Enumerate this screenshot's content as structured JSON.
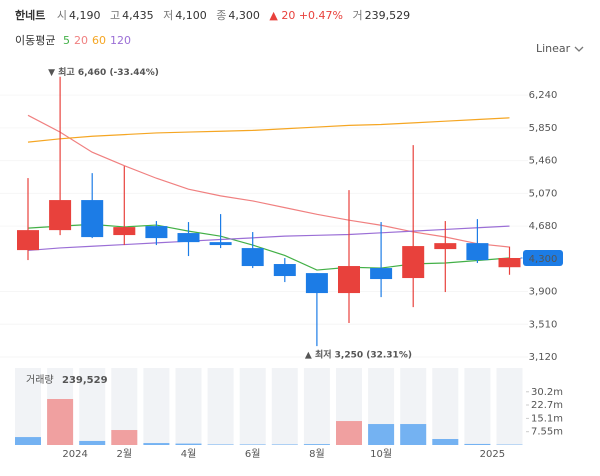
{
  "header": {
    "name": "한네트",
    "open_label": "시",
    "open": "4,190",
    "high_label": "고",
    "high": "4,435",
    "low_label": "저",
    "low": "4,100",
    "close_label": "종",
    "close": "4,300",
    "change": "▲ 20 +0.47%",
    "volume_label": "거",
    "volume": "239,529"
  },
  "ma_legend_label": "이동평균",
  "scale_button": "Linear",
  "chart_data": {
    "type": "candlestick",
    "categories": [
      null,
      "2024",
      null,
      "2월",
      null,
      "4월",
      null,
      "6월",
      null,
      "8월",
      null,
      "10월",
      null,
      null,
      "2025",
      null
    ],
    "open": [
      4394,
      4632,
      4990,
      4573,
      4680,
      4597,
      4489,
      4418,
      4228,
      4120,
      3882,
      4180,
      4061,
      4406,
      4477,
      4190
    ],
    "high": [
      5252,
      6460,
      5311,
      5394,
      4740,
      4728,
      4823,
      4609,
      4299,
      4120,
      5109,
      4728,
      5645,
      4740,
      4763,
      4435
    ],
    "low": [
      4275,
      4573,
      4537,
      4454,
      4454,
      4323,
      4418,
      4180,
      4013,
      3250,
      3525,
      3834,
      3715,
      3894,
      4240,
      4100
    ],
    "close": [
      4632,
      4990,
      4549,
      4668,
      4537,
      4489,
      4454,
      4204,
      4085,
      3882,
      4204,
      4049,
      4442,
      4477,
      4275,
      4300
    ],
    "up_color": "#e8413c",
    "down_color": "#1c7ce6",
    "series": [
      {
        "name": "5",
        "color": "#43b047",
        "values": [
          4656,
          4680,
          4700,
          4670,
          4692,
          4620,
          4560,
          4454,
          4330,
          4156,
          4190,
          4180,
          4230,
          4240,
          4270,
          4300
        ]
      },
      {
        "name": "20",
        "color": "#f08080",
        "values": [
          6000,
          5800,
          5560,
          5400,
          5250,
          5120,
          5040,
          4980,
          4900,
          4820,
          4750,
          4690,
          4610,
          4550,
          4470,
          4430
        ]
      },
      {
        "name": "60",
        "color": "#f5a623",
        "values": [
          5680,
          5720,
          5750,
          5770,
          5790,
          5800,
          5810,
          5820,
          5840,
          5860,
          5880,
          5890,
          5910,
          5930,
          5950,
          5970
        ]
      },
      {
        "name": "120",
        "color": "#9b6fd6",
        "values": [
          4390,
          4420,
          4440,
          4460,
          4480,
          4500,
          4520,
          4540,
          4560,
          4570,
          4580,
          4600,
          4620,
          4640,
          4660,
          4680
        ]
      }
    ],
    "ylim": [
      3025,
      6635
    ],
    "yticks": [
      {
        "value": 3120,
        "label": "3,120"
      },
      {
        "value": 3510,
        "label": "3,510"
      },
      {
        "value": 3900,
        "label": "3,900"
      },
      {
        "value": 4680,
        "label": "4,680"
      },
      {
        "value": 5070,
        "label": "5,070"
      },
      {
        "value": 5460,
        "label": "5,460"
      },
      {
        "value": 5850,
        "label": "5,850"
      },
      {
        "value": 6240,
        "label": "6,240"
      }
    ],
    "grid": true,
    "last_price_label": "4,300",
    "annotations": [
      {
        "text": "▼ 최고 6,460 (-33.44%)",
        "index": 1
      },
      {
        "text": "▲ 최저 3,250 (32.31%)",
        "index": 9
      }
    ],
    "volume": {
      "label": "거래량",
      "value_label": "239,529",
      "values": [
        4.5,
        26.1,
        2.3,
        8.5,
        1.1,
        0.8,
        0.3,
        0.3,
        0.3,
        0.5,
        13.6,
        11.9,
        11.9,
        3.4,
        0.6,
        0.24
      ],
      "colors": [
        "#74b2f2",
        "#f0a0a0",
        "#74b2f2",
        "#f0a0a0",
        "#74b2f2",
        "#74b2f2",
        "#74b2f2",
        "#74b2f2",
        "#74b2f2",
        "#74b2f2",
        "#f0a0a0",
        "#74b2f2",
        "#74b2f2",
        "#74b2f2",
        "#74b2f2",
        "#74b2f2"
      ],
      "ylim": [
        0,
        43.7
      ],
      "yticks": [
        {
          "value": 7.55,
          "label": "7.55m"
        },
        {
          "value": 15.1,
          "label": "15.1m"
        },
        {
          "value": 22.7,
          "label": "22.7m"
        },
        {
          "value": 30.2,
          "label": "30.2m"
        }
      ]
    }
  }
}
